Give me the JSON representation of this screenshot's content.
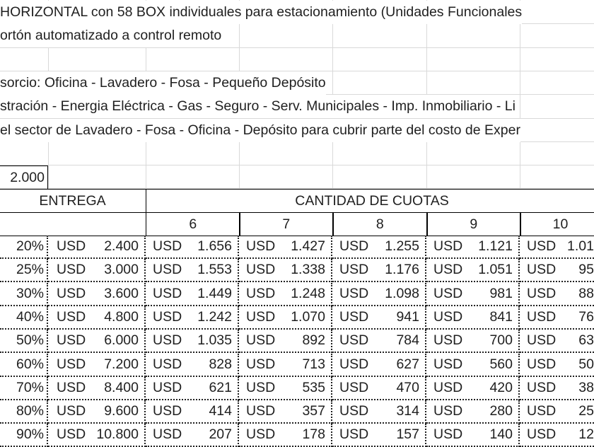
{
  "sheet": {
    "lines": [
      "HORIZONTAL con 58 BOX individuales para estacionamiento (Unidades Funcionales",
      "ortón automatizado a control remoto",
      "",
      "sorcio: Oficina - Lavadero - Fosa - Pequeño Depósito",
      "stración - Energia Eléctrica - Gas - Seguro - Serv. Municipales - Imp. Inmobiliario - Li",
      "el sector de Lavadero - Fosa - Oficina - Depósito para cubrir parte del costo de Exper",
      ""
    ],
    "price": "2.000",
    "entrega_header": "ENTREGA",
    "cuotas_header": "CANTIDAD DE CUOTAS",
    "cuotas": [
      "6",
      "7",
      "8",
      "9",
      "10"
    ],
    "currency": "USD",
    "rows": [
      {
        "pct": "20%",
        "entrega": "2.400",
        "values": [
          "1.656",
          "1.427",
          "1.255",
          "1.121",
          "1.01"
        ]
      },
      {
        "pct": "25%",
        "entrega": "3.000",
        "values": [
          "1.553",
          "1.338",
          "1.176",
          "1.051",
          "95"
        ]
      },
      {
        "pct": "30%",
        "entrega": "3.600",
        "values": [
          "1.449",
          "1.248",
          "1.098",
          "981",
          "88"
        ]
      },
      {
        "pct": "40%",
        "entrega": "4.800",
        "values": [
          "1.242",
          "1.070",
          "941",
          "841",
          "76"
        ]
      },
      {
        "pct": "50%",
        "entrega": "6.000",
        "values": [
          "1.035",
          "892",
          "784",
          "700",
          "63"
        ]
      },
      {
        "pct": "60%",
        "entrega": "7.200",
        "values": [
          "828",
          "713",
          "627",
          "560",
          "50"
        ]
      },
      {
        "pct": "70%",
        "entrega": "8.400",
        "values": [
          "621",
          "535",
          "470",
          "420",
          "38"
        ]
      },
      {
        "pct": "80%",
        "entrega": "9.600",
        "values": [
          "414",
          "357",
          "314",
          "280",
          "25"
        ]
      },
      {
        "pct": "90%",
        "entrega": "10.800",
        "values": [
          "207",
          "178",
          "157",
          "140",
          "12"
        ]
      }
    ]
  }
}
